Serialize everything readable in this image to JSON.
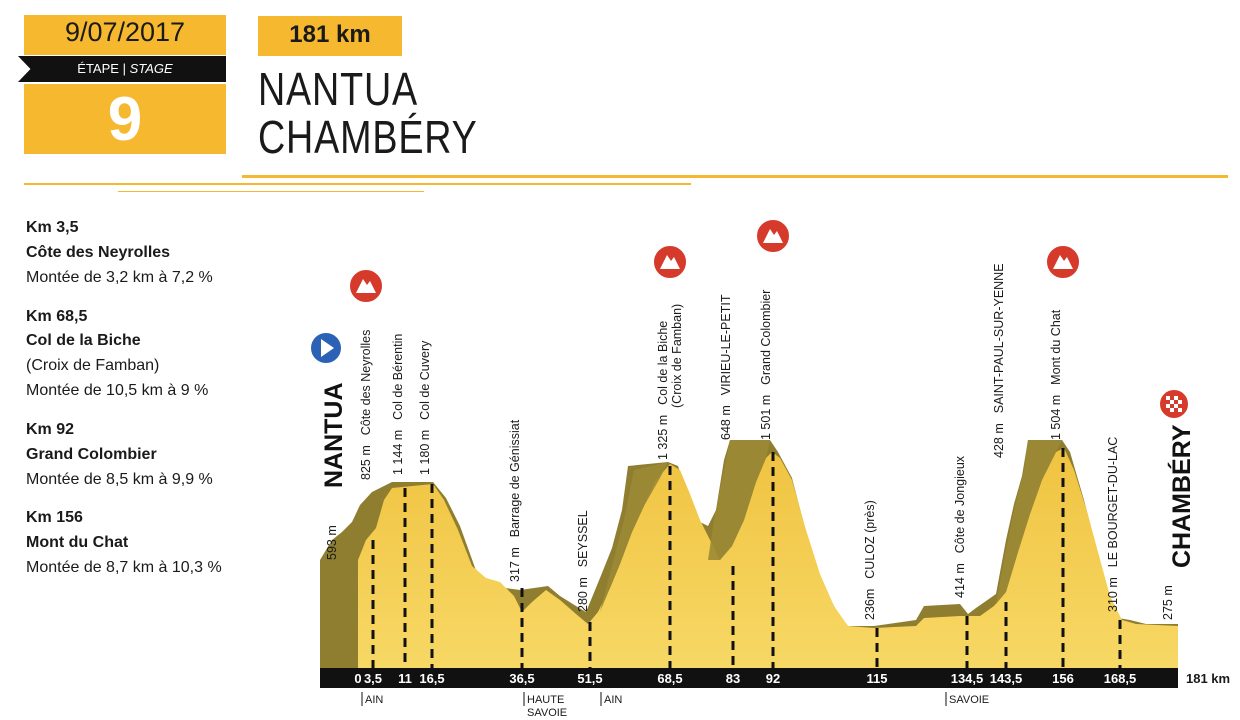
{
  "header": {
    "date": "9/07/2017",
    "stage_label_fr": "ÉTAPE",
    "stage_label_sep": "|",
    "stage_label_en": "STAGE",
    "stage_number": "9",
    "distance": "181 km",
    "start_city": "NANTUA",
    "finish_city": "CHAMBÉRY"
  },
  "climbs": [
    {
      "km": "Km 3,5",
      "name": "Côte des Neyrolles",
      "sub": "",
      "grade": "Montée de 3,2 km à 7,2 %"
    },
    {
      "km": "Km 68,5",
      "name": "Col de la Biche",
      "sub": "(Croix de Famban)",
      "grade": "Montée de 10,5 km à 9 %"
    },
    {
      "km": "Km 92",
      "name": "Grand Colombier",
      "sub": "",
      "grade": "Montée de 8,5 km à 9,9 %"
    },
    {
      "km": "Km 156",
      "name": "Mont du Chat",
      "sub": "",
      "grade": "Montée de 8,7 km à 10,3 %"
    }
  ],
  "profile": {
    "total_label": "181 km",
    "start_name": "NANTUA",
    "finish_name": "CHAMBÉRY",
    "points": [
      {
        "km": 0,
        "km_label": "0",
        "alt": "593 m",
        "name": "",
        "name2": "",
        "marker": "start"
      },
      {
        "km": 3.5,
        "km_label": "3,5",
        "alt": "825 m",
        "name": "Côte des Neyrolles",
        "name2": "",
        "marker": "climb"
      },
      {
        "km": 11,
        "km_label": "11",
        "alt": "1 144 m",
        "name": "Col de Bérentin",
        "name2": "",
        "marker": ""
      },
      {
        "km": 16.5,
        "km_label": "16,5",
        "alt": "1 180 m",
        "name": "Col de Cuvery",
        "name2": "",
        "marker": ""
      },
      {
        "km": 36.5,
        "km_label": "36,5",
        "alt": "317 m",
        "name": "Barrage de Génissiat",
        "name2": "",
        "marker": ""
      },
      {
        "km": 51.5,
        "km_label": "51,5",
        "alt": "280 m",
        "name": "SEYSSEL",
        "name2": "",
        "marker": ""
      },
      {
        "km": 68.5,
        "km_label": "68,5",
        "alt": "1 325 m",
        "name": "Col de la Biche",
        "name2": "(Croix de Famban)",
        "marker": "climb"
      },
      {
        "km": 83,
        "km_label": "83",
        "alt": "648 m",
        "name": "VIRIEU-LE-PETIT",
        "name2": "",
        "marker": ""
      },
      {
        "km": 92,
        "km_label": "92",
        "alt": "1 501 m",
        "name": "Grand Colombier",
        "name2": "",
        "marker": "climb"
      },
      {
        "km": 115,
        "km_label": "115",
        "alt": "236m",
        "name": "CULOZ (près)",
        "name2": "",
        "marker": ""
      },
      {
        "km": 134.5,
        "km_label": "134,5",
        "alt": "414 m",
        "name": "Côte de Jongieux",
        "name2": "",
        "marker": ""
      },
      {
        "km": 143.5,
        "km_label": "143,5",
        "alt": "428 m",
        "name": "SAINT-PAUL-SUR-YENNE",
        "name2": "",
        "marker": ""
      },
      {
        "km": 156,
        "km_label": "156",
        "alt": "1 504 m",
        "name": "Mont du Chat",
        "name2": "",
        "marker": "climb"
      },
      {
        "km": 168.5,
        "km_label": "168,5",
        "alt": "310 m",
        "name": "LE BOURGET-DU-LAC",
        "name2": "",
        "marker": ""
      },
      {
        "km": 181,
        "km_label": "",
        "alt": "275 m",
        "name": "",
        "name2": "",
        "marker": "finish"
      }
    ],
    "departments": [
      "AIN",
      "HAUTE",
      "SAVOIE",
      "AIN",
      "SAVOIE"
    ]
  },
  "colors": {
    "accent": "#f5b82e",
    "terrain": "#f2c94c",
    "wall": "#8f7e2f",
    "climb_marker": "#d63a2b",
    "start_marker": "#2c62b5"
  }
}
